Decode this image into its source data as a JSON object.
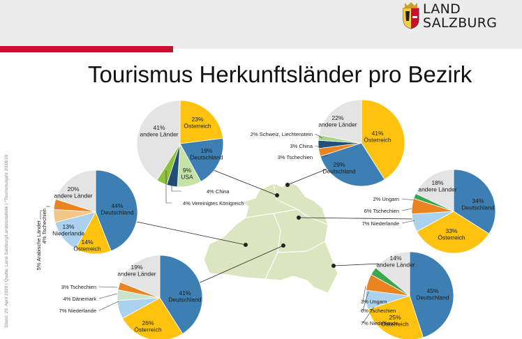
{
  "header": {
    "brand_line1": "LAND",
    "brand_line2": "SALZBURG",
    "title": "Tourismus Herkunftsländer pro Bezirk",
    "source_note": "Stand: 29. April 2020 | Quelle: Land Salzburg/Landesstatistik | *Tourismusjahr 2018/19"
  },
  "colors": {
    "Deutschland": "#3d7fb2",
    "Österreich": "#fec20f",
    "andere Länder": "#e4e4e4",
    "USA": "#c6e2a7",
    "China": "#1f4f7a",
    "Vereinigtes Königreich": "#8fc03e",
    "Schweiz, Liechtenstein": "#a9d58f",
    "Tschechien": "#ea8420",
    "Niederlande": "#aad2ef",
    "Ungarn": "#3aa64f",
    "Arabische Länder": "#f3c78a",
    "Dänemark": "#c9e3cc",
    "red_bar": "#c8102e",
    "map": "#dbe5bf"
  },
  "chart_data": [
    {
      "type": "pie",
      "slices": [
        {
          "label": "Österreich",
          "value": 23,
          "text": "23%|Österreich"
        },
        {
          "label": "Deutschland",
          "value": 19,
          "text": "19%|Deutschland"
        },
        {
          "label": "USA",
          "value": 9,
          "text": "9%|USA"
        },
        {
          "label": "China",
          "value": 4,
          "text": "4% China"
        },
        {
          "label": "Vereinigtes Königreich",
          "value": 4,
          "text": "4% Vereinigtes Königreich"
        },
        {
          "label": "andere Länder",
          "value": 41,
          "text": "41%|andere Länder"
        }
      ]
    },
    {
      "type": "pie",
      "slices": [
        {
          "label": "Österreich",
          "value": 41,
          "text": "41%|Österreich"
        },
        {
          "label": "Deutschland",
          "value": 29,
          "text": "29%|Deutschland"
        },
        {
          "label": "Tschechien",
          "value": 3,
          "text": "3% Tschechien"
        },
        {
          "label": "China",
          "value": 3,
          "text": "3% China"
        },
        {
          "label": "Schweiz, Liechtenstein",
          "value": 2,
          "text": "2% Schweiz, Liechtenstein"
        },
        {
          "label": "andere Länder",
          "value": 22,
          "text": "22%|andere Länder"
        }
      ]
    },
    {
      "type": "pie",
      "slices": [
        {
          "label": "Deutschland",
          "value": 44,
          "text": "44%|Deutschland"
        },
        {
          "label": "Österreich",
          "value": 14,
          "text": "14%|Österreich"
        },
        {
          "label": "Niederlande",
          "value": 13,
          "text": "13%|Niederlande"
        },
        {
          "label": "Arabische Länder",
          "value": 5,
          "text": "5% Arabische Länder"
        },
        {
          "label": "Tschechien",
          "value": 4,
          "text": "4% Tschechien"
        },
        {
          "label": "andere Länder",
          "value": 20,
          "text": "20%|andere Länder"
        }
      ]
    },
    {
      "type": "pie",
      "slices": [
        {
          "label": "Deutschland",
          "value": 34,
          "text": "34%|Deutschland"
        },
        {
          "label": "Österreich",
          "value": 33,
          "text": "33%|Österreich"
        },
        {
          "label": "Niederlande",
          "value": 7,
          "text": "7% Niederlande"
        },
        {
          "label": "Tschechien",
          "value": 6,
          "text": "6% Tschechien"
        },
        {
          "label": "Ungarn",
          "value": 2,
          "text": "2% Ungarn"
        },
        {
          "label": "andere Länder",
          "value": 18,
          "text": "18%|andere Länder"
        }
      ]
    },
    {
      "type": "pie",
      "slices": [
        {
          "label": "Deutschland",
          "value": 41,
          "text": "41%|Deutschland"
        },
        {
          "label": "Österreich",
          "value": 26,
          "text": "26%|Österreich"
        },
        {
          "label": "Niederlande",
          "value": 7,
          "text": "7% Niederlande"
        },
        {
          "label": "Dänemark",
          "value": 4,
          "text": "4% Dänemark"
        },
        {
          "label": "Tschechien",
          "value": 3,
          "text": "3% Tschechien"
        },
        {
          "label": "andere Länder",
          "value": 19,
          "text": "19%|andere Länder"
        }
      ]
    },
    {
      "type": "pie",
      "slices": [
        {
          "label": "Deutschland",
          "value": 45,
          "text": "45%|Deutschland"
        },
        {
          "label": "Österreich",
          "value": 25,
          "text": "25%|Österreich"
        },
        {
          "label": "Niederlande",
          "value": 7,
          "text": "7% Niederlande"
        },
        {
          "label": "Tschechien",
          "value": 6,
          "text": "6% Tschechien"
        },
        {
          "label": "Ungarn",
          "value": 3,
          "text": "3% Ungarn"
        },
        {
          "label": "andere Länder",
          "value": 14,
          "text": "14%|andere Länder"
        }
      ]
    }
  ]
}
